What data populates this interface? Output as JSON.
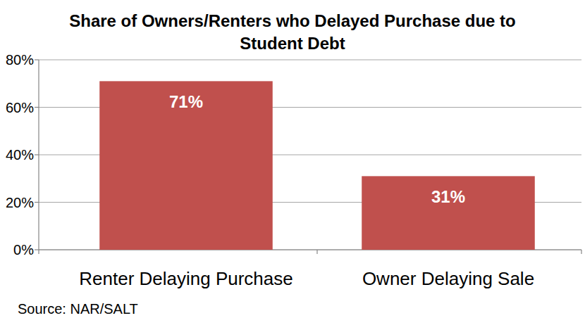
{
  "chart_data": {
    "type": "bar",
    "title": "Share of Owners/Renters who Delayed Purchase due to Student Debt",
    "categories": [
      "Renter Delaying Purchase",
      "Owner Delaying Sale"
    ],
    "values": [
      71,
      31
    ],
    "value_labels": [
      "71%",
      "31%"
    ],
    "color": "#c0504d",
    "ylim": [
      0,
      80
    ],
    "yticks": [
      {
        "value": 0,
        "label": "0%"
      },
      {
        "value": 20,
        "label": "20%"
      },
      {
        "value": 40,
        "label": "40%"
      },
      {
        "value": 60,
        "label": "60%"
      },
      {
        "value": 80,
        "label": "80%"
      }
    ],
    "grid": true,
    "data_labels": true,
    "source": "Source: NAR/SALT"
  }
}
